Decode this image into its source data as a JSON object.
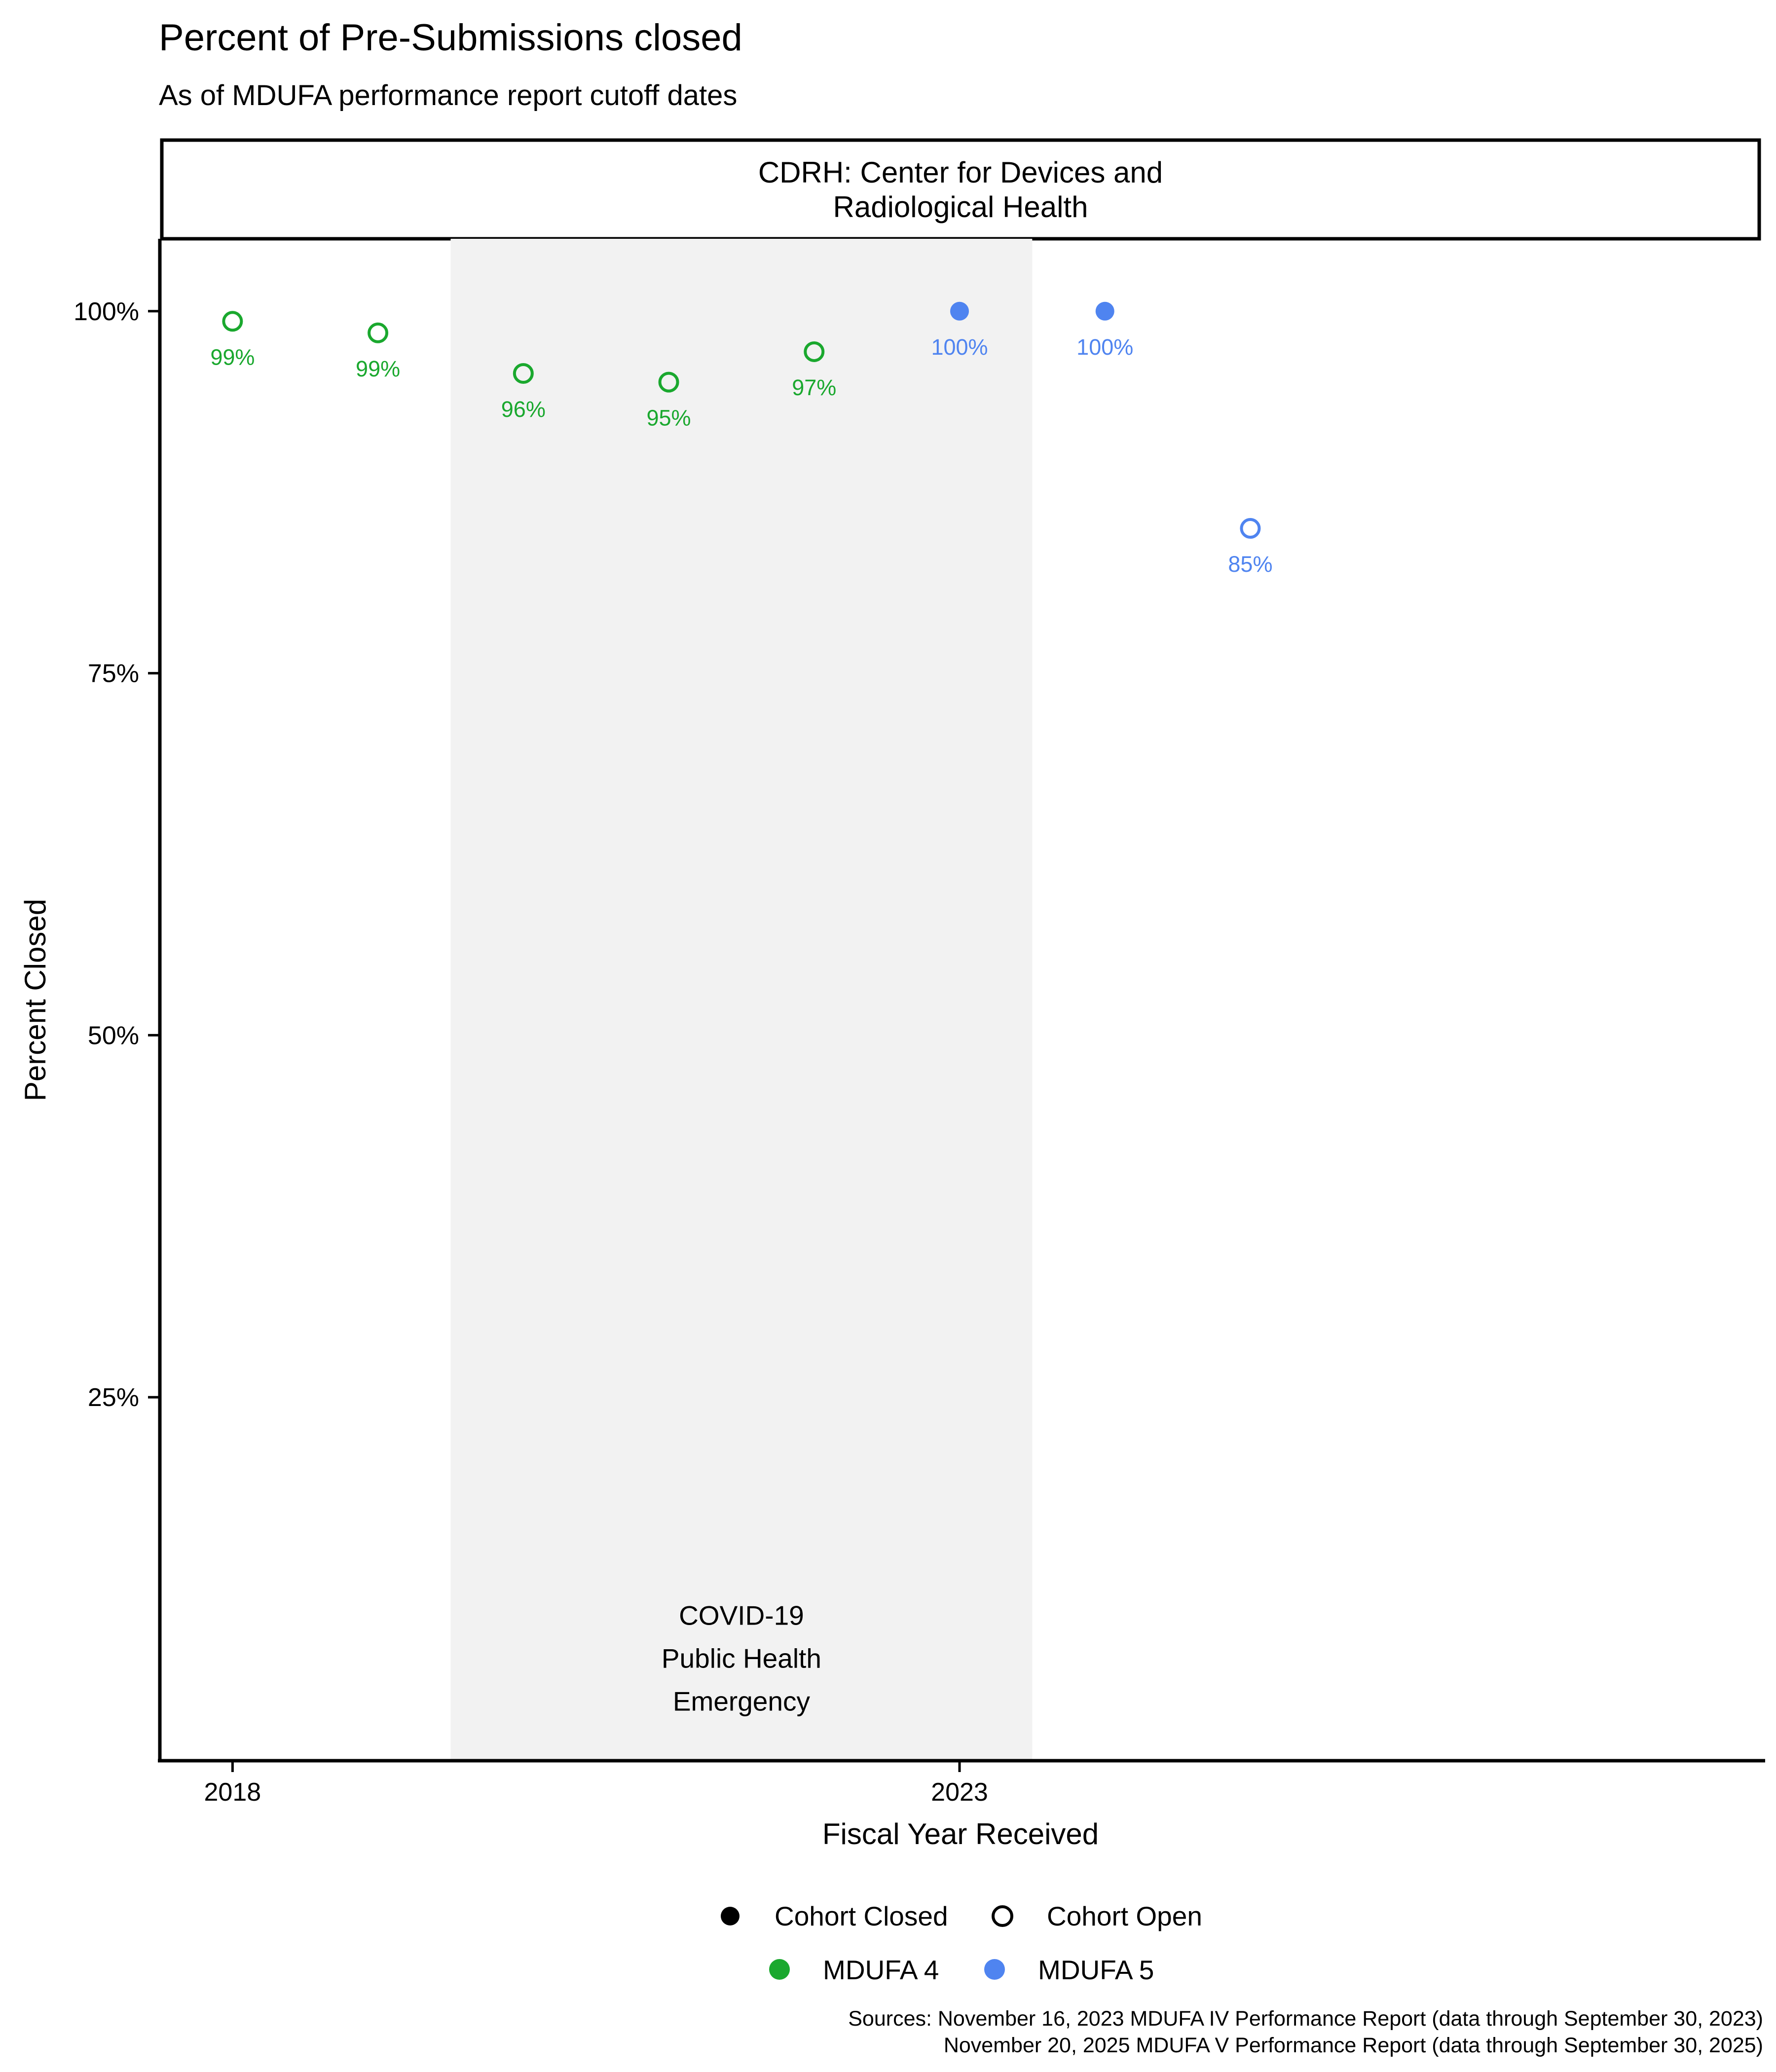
{
  "title": "Percent of Pre-Submissions closed",
  "subtitle": "As of MDUFA performance report cutoff dates",
  "panel_title": [
    "CDRH: Center for Devices and",
    "Radiological Health"
  ],
  "annotation": [
    "COVID-19",
    "Public Health",
    "Emergency"
  ],
  "legend": {
    "status": [
      {
        "label": "Cohort Closed",
        "style": "filled"
      },
      {
        "label": "Cohort Open",
        "style": "hollow"
      }
    ],
    "agreements": [
      {
        "label": "MDUFA 4",
        "color": "#1aa82e"
      },
      {
        "label": "MDUFA 5",
        "color": "#4f84f0"
      }
    ]
  },
  "sources": [
    "Sources: November 16, 2023 MDUFA IV Performance Report (data through September 30, 2023)",
    "November 20, 2025 MDUFA V Performance Report (data through September 30, 2025)"
  ],
  "chart_data": {
    "type": "scatter",
    "title": "Percent of Pre-Submissions closed",
    "subtitle": "As of MDUFA performance report cutoff dates",
    "xlabel": "Fiscal Year Received",
    "ylabel": "Percent Closed",
    "xlim": [
      2017.5,
      2028.5
    ],
    "ylim": [
      0.0,
      1.05
    ],
    "xticks": [
      2018,
      2023
    ],
    "yticks": [
      0.25,
      0.5,
      0.75,
      1.0
    ],
    "ytick_labels": [
      "25%",
      "50%",
      "75%",
      "100%"
    ],
    "shaded_region": {
      "x_start": 2019.5,
      "x_end": 2023.5,
      "label": "COVID-19 Public Health Emergency"
    },
    "points": [
      {
        "x": 2018,
        "y": 0.993,
        "label": "99%",
        "agreement": "MDUFA 4",
        "status": "Cohort Open"
      },
      {
        "x": 2019,
        "y": 0.985,
        "label": "99%",
        "agreement": "MDUFA 4",
        "status": "Cohort Open"
      },
      {
        "x": 2020,
        "y": 0.957,
        "label": "96%",
        "agreement": "MDUFA 4",
        "status": "Cohort Open"
      },
      {
        "x": 2021,
        "y": 0.951,
        "label": "95%",
        "agreement": "MDUFA 4",
        "status": "Cohort Open"
      },
      {
        "x": 2022,
        "y": 0.972,
        "label": "97%",
        "agreement": "MDUFA 4",
        "status": "Cohort Open"
      },
      {
        "x": 2023,
        "y": 1.0,
        "label": "100%",
        "agreement": "MDUFA 5",
        "status": "Cohort Closed"
      },
      {
        "x": 2024,
        "y": 1.0,
        "label": "100%",
        "agreement": "MDUFA 5",
        "status": "Cohort Closed"
      },
      {
        "x": 2025,
        "y": 0.85,
        "label": "85%",
        "agreement": "MDUFA 5",
        "status": "Cohort Open"
      }
    ]
  }
}
